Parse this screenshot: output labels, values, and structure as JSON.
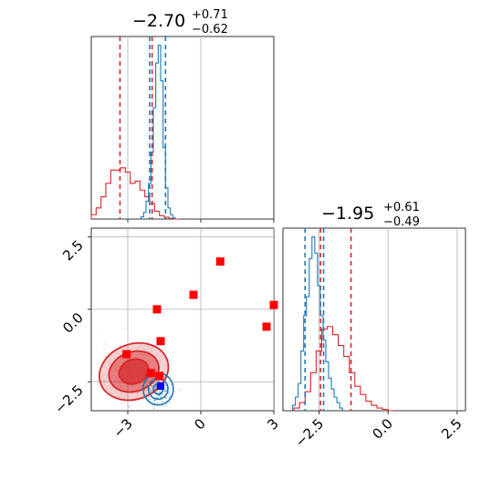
{
  "colors": {
    "red": "#d62728",
    "blue": "#1f77b4",
    "marker_red": "#ff0000",
    "marker_blue": "#0000ff",
    "grid": "#b0b0b0"
  },
  "chart_data": [
    {
      "panel": "top-left",
      "type": "line",
      "title_value": "−2.70",
      "title_plus": "+0.71",
      "title_minus": "−0.62",
      "xlim": [
        -4.5,
        3.0
      ],
      "grid": true,
      "series": [
        {
          "color": "red",
          "style": "step",
          "x": [
            -4.4,
            -4.2,
            -4.0,
            -3.8,
            -3.6,
            -3.4,
            -3.2,
            -3.0,
            -2.8,
            -2.6,
            -2.4,
            -2.2,
            -2.0,
            -1.8,
            -1.6,
            -1.4,
            -1.2,
            -1.0
          ],
          "values": [
            0.2,
            0.5,
            1.0,
            1.6,
            2.2,
            2.2,
            2.3,
            2.1,
            1.6,
            1.7,
            1.3,
            1.0,
            0.7,
            0.35,
            0.15,
            0.08,
            0.03,
            0.0
          ],
          "quantiles": [
            -3.32,
            -2.0
          ]
        },
        {
          "color": "blue",
          "style": "step",
          "x": [
            -2.4,
            -2.3,
            -2.2,
            -2.1,
            -2.0,
            -1.9,
            -1.8,
            -1.7,
            -1.6,
            -1.5,
            -1.4,
            -1.3,
            -1.2,
            -1.1
          ],
          "values": [
            0.1,
            0.3,
            0.8,
            1.6,
            3.0,
            5.0,
            7.0,
            7.8,
            6.2,
            3.2,
            1.4,
            0.5,
            0.2,
            0.05
          ],
          "quantiles": [
            -2.1,
            -1.45
          ]
        }
      ]
    },
    {
      "panel": "bottom-right",
      "type": "line",
      "title_value": "−1.95",
      "title_plus": "+0.61",
      "title_minus": "−0.49",
      "xlim": [
        -3.8,
        2.8
      ],
      "xticks": [
        "−2.5",
        "0.0",
        "2.5"
      ],
      "xtick_values": [
        -2.5,
        0.0,
        2.5
      ],
      "grid": true,
      "series": [
        {
          "color": "red",
          "style": "step",
          "x": [
            -3.3,
            -3.1,
            -2.9,
            -2.7,
            -2.5,
            -2.3,
            -2.1,
            -1.9,
            -1.7,
            -1.5,
            -1.3,
            -1.1,
            -0.9,
            -0.7,
            -0.5,
            -0.3,
            -0.1,
            0.1
          ],
          "values": [
            0.1,
            0.3,
            0.7,
            1.4,
            2.2,
            3.0,
            3.1,
            2.8,
            2.4,
            2.0,
            1.4,
            0.9,
            0.6,
            0.35,
            0.2,
            0.1,
            0.05,
            0.0
          ],
          "quantiles": [
            -2.44,
            -1.34
          ]
        },
        {
          "color": "blue",
          "style": "step",
          "x": [
            -3.4,
            -3.3,
            -3.2,
            -3.1,
            -3.0,
            -2.9,
            -2.8,
            -2.7,
            -2.6,
            -2.5,
            -2.4,
            -2.3,
            -2.2,
            -2.1,
            -2.0,
            -1.9,
            -1.8,
            -1.7
          ],
          "values": [
            0.2,
            0.5,
            1.0,
            2.2,
            3.5,
            4.2,
            5.6,
            6.4,
            5.8,
            4.6,
            3.5,
            2.6,
            1.8,
            1.2,
            0.8,
            0.5,
            0.3,
            0.1
          ],
          "quantiles": [
            -3.0,
            -2.33
          ]
        }
      ]
    },
    {
      "panel": "bottom-left",
      "type": "scatter",
      "xlim": [
        -4.5,
        3.0
      ],
      "ylim": [
        -3.5,
        2.8
      ],
      "xticks": [
        "−3",
        "0",
        "3"
      ],
      "xtick_values": [
        -3,
        0,
        3
      ],
      "yticks": [
        "−2.5",
        "0.0",
        "2.5"
      ],
      "ytick_values": [
        -2.5,
        0.0,
        2.5
      ],
      "grid": true,
      "contours": [
        {
          "color": "red",
          "center": [
            -2.75,
            -2.15
          ],
          "levels": [
            [
              1.45,
              0.95,
              -20
            ],
            [
              1.05,
              0.68,
              -20
            ],
            [
              0.62,
              0.42,
              -20
            ]
          ]
        },
        {
          "color": "blue",
          "center": [
            -1.75,
            -2.75
          ],
          "levels": [
            [
              0.62,
              0.55,
              0
            ],
            [
              0.4,
              0.35,
              0
            ],
            [
              0.2,
              0.18,
              0
            ]
          ]
        }
      ],
      "markers_red": [
        {
          "x": 0.8,
          "y": 1.65
        },
        {
          "x": 3.0,
          "y": 0.15
        },
        {
          "x": -0.3,
          "y": 0.5
        },
        {
          "x": -1.8,
          "y": 0.0
        },
        {
          "x": 2.7,
          "y": -0.6
        },
        {
          "x": -1.65,
          "y": -1.1
        },
        {
          "x": -3.05,
          "y": -1.55
        },
        {
          "x": -2.05,
          "y": -2.2
        },
        {
          "x": -1.7,
          "y": -2.3
        }
      ],
      "markers_blue": [
        {
          "x": -1.65,
          "y": -2.65
        }
      ]
    }
  ]
}
